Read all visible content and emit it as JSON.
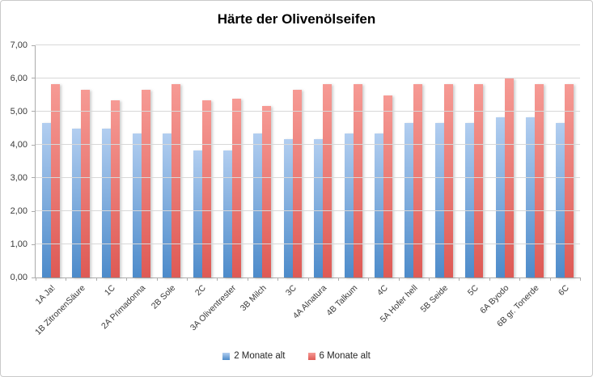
{
  "chart_data": {
    "type": "bar",
    "title": "Härte der Olivenölseifen",
    "categories": [
      "1A Ja!",
      "1B ZitronenSäure",
      "1C",
      "2A Primadonna",
      "2B Sole",
      "2C",
      "3A Oliventrester",
      "3B Milch",
      "3C",
      "4A Alnatura",
      "4B Talkum",
      "4C",
      "5A Hofer hell",
      "5B Seide",
      "5C",
      "6A Byodo",
      "6B gr. Tonerde",
      "6C"
    ],
    "series": [
      {
        "name": "2 Monate alt",
        "color_top": "#b2cef0",
        "color_bottom": "#4d8bca",
        "values": [
          4.67,
          4.5,
          4.5,
          4.33,
          4.33,
          3.83,
          3.83,
          4.33,
          4.17,
          4.17,
          4.33,
          4.33,
          4.67,
          4.67,
          4.67,
          4.83,
          4.83,
          4.67
        ]
      },
      {
        "name": "6 Monate alt",
        "color_top": "#f69a94",
        "color_bottom": "#de5a55",
        "values": [
          5.83,
          5.67,
          5.33,
          5.67,
          5.83,
          5.33,
          5.4,
          5.17,
          5.67,
          5.83,
          5.83,
          5.5,
          5.83,
          5.83,
          5.83,
          6.0,
          5.83,
          5.83
        ]
      }
    ],
    "ylim": [
      0,
      7
    ],
    "y_ticks": [
      "0,00",
      "1,00",
      "2,00",
      "3,00",
      "4,00",
      "5,00",
      "6,00",
      "7,00"
    ],
    "grid": true,
    "legend_position": "bottom",
    "xlabel": "",
    "ylabel": ""
  }
}
